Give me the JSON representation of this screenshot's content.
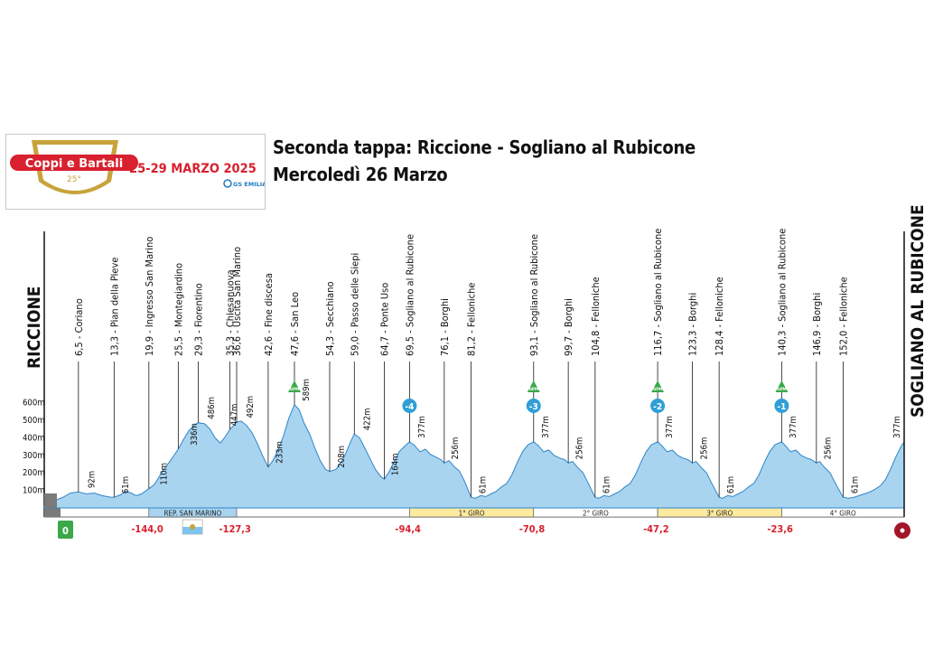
{
  "header": {
    "title_line1": "Seconda tappa: Riccione - Sogliano al Rubicone",
    "title_line2": "Mercoledì 26 Marzo"
  },
  "logo": {
    "brand": "Coppi e Bartali",
    "edition": "25°",
    "dates": "25-29 MARZO 2025",
    "organizer": "GS EMILIA"
  },
  "chart_data": {
    "type": "area",
    "title": "Seconda tappa: Riccione - Sogliano al Rubicone",
    "xlabel": "",
    "ylabel": "",
    "total_km": 163.6,
    "start": "RICCIONE",
    "finish": "SOGLIANO AL RUBICONE",
    "ylim": [
      0,
      650
    ],
    "y_ticks": [
      "100m",
      "200m",
      "300m",
      "400m",
      "500m",
      "600m"
    ],
    "grid": false,
    "waypoints": [
      {
        "km": "6,5",
        "name": "Coriano"
      },
      {
        "km": "13,3",
        "name": "Pian della Pieve"
      },
      {
        "km": "19,9",
        "name": "Ingresso San Marino"
      },
      {
        "km": "25,5",
        "name": "Montegiardino"
      },
      {
        "km": "29,3",
        "name": "Fiorentino"
      },
      {
        "km": "35,3",
        "name": "Chiesanuova"
      },
      {
        "km": "36,6",
        "name": "Uscita San Marino"
      },
      {
        "km": "42,6",
        "name": "Fine discesa"
      },
      {
        "km": "47,6",
        "name": "San Leo"
      },
      {
        "km": "54,3",
        "name": "Secchiano"
      },
      {
        "km": "59,0",
        "name": "Passo delle Siepi"
      },
      {
        "km": "64,7",
        "name": "Ponte Uso"
      },
      {
        "km": "69,5",
        "name": "Sogliano al Rubicone"
      },
      {
        "km": "76,1",
        "name": "Borghi"
      },
      {
        "km": "81,2",
        "name": "Felloniche"
      },
      {
        "km": "93,1",
        "name": "Sogliano al Rubicone"
      },
      {
        "km": "99,7",
        "name": "Borghi"
      },
      {
        "km": "104,8",
        "name": "Felloniche"
      },
      {
        "km": "116,7",
        "name": "Sogliano al Rubicone"
      },
      {
        "km": "123,3",
        "name": "Borghi"
      },
      {
        "km": "128,4",
        "name": "Felloniche"
      },
      {
        "km": "140,3",
        "name": "Sogliano al Rubicone"
      },
      {
        "km": "146,9",
        "name": "Borghi"
      },
      {
        "km": "152,0",
        "name": "Felloniche"
      }
    ],
    "elevation_labels": [
      {
        "km": 9.0,
        "value": 92,
        "label": "92m"
      },
      {
        "km": 15.5,
        "value": 61,
        "label": "61m"
      },
      {
        "km": 22.8,
        "value": 110,
        "label": "110m"
      },
      {
        "km": 28.5,
        "value": 336,
        "label": "336m"
      },
      {
        "km": 31.8,
        "value": 486,
        "label": "486m"
      },
      {
        "km": 36.2,
        "value": 447,
        "label": "447m"
      },
      {
        "km": 39.2,
        "value": 492,
        "label": "492m"
      },
      {
        "km": 44.8,
        "value": 233,
        "label": "233m"
      },
      {
        "km": 49.8,
        "value": 589,
        "label": "589m"
      },
      {
        "km": 56.5,
        "value": 208,
        "label": "208m"
      },
      {
        "km": 61.4,
        "value": 422,
        "label": "422m"
      },
      {
        "km": 66.8,
        "value": 164,
        "label": "164m"
      },
      {
        "km": 71.8,
        "value": 377,
        "label": "377m"
      },
      {
        "km": 78.2,
        "value": 256,
        "label": "256m"
      },
      {
        "km": 83.4,
        "value": 61,
        "label": "61m"
      },
      {
        "km": 95.4,
        "value": 377,
        "label": "377m"
      },
      {
        "km": 101.8,
        "value": 256,
        "label": "256m"
      },
      {
        "km": 107.0,
        "value": 61,
        "label": "61m"
      },
      {
        "km": 118.9,
        "value": 377,
        "label": "377m"
      },
      {
        "km": 125.5,
        "value": 256,
        "label": "256m"
      },
      {
        "km": 130.6,
        "value": 61,
        "label": "61m"
      },
      {
        "km": 142.5,
        "value": 377,
        "label": "377m"
      },
      {
        "km": 149.1,
        "value": 256,
        "label": "256m"
      },
      {
        "km": 154.2,
        "value": 61,
        "label": "61m"
      },
      {
        "km": 162.2,
        "value": 377,
        "label": "377m"
      }
    ],
    "gpm": [
      {
        "km": 47.6,
        "label": "GPM"
      },
      {
        "km": 93.1,
        "label": "GPM"
      },
      {
        "km": 116.7,
        "label": "GPM"
      },
      {
        "km": 140.3,
        "label": "GPM"
      }
    ],
    "laps_to_go": [
      {
        "km": 69.5,
        "label": "-4"
      },
      {
        "km": 93.1,
        "label": "-3"
      },
      {
        "km": 116.7,
        "label": "-2"
      },
      {
        "km": 140.3,
        "label": "-1"
      }
    ],
    "remaining_km": [
      {
        "km": 19.6,
        "label": "-144,0"
      },
      {
        "km": 36.3,
        "label": "-127,3"
      },
      {
        "km": 69.2,
        "label": "-94,4"
      },
      {
        "km": 92.8,
        "label": "-70,8"
      },
      {
        "km": 116.4,
        "label": "-47,2"
      },
      {
        "km": 140.0,
        "label": "-23,6"
      }
    ],
    "segments": [
      {
        "from": 19.9,
        "to": 36.6,
        "label": "REP. SAN MARINO",
        "color": "#a9d4f0"
      },
      {
        "from": 69.5,
        "to": 93.1,
        "label": "1° GIRO",
        "color": "#fbeaa0"
      },
      {
        "from": 93.1,
        "to": 116.7,
        "label": "2° GIRO",
        "color": "#ffffff"
      },
      {
        "from": 116.7,
        "to": 140.3,
        "label": "3° GIRO",
        "color": "#fbeaa0"
      },
      {
        "from": 140.3,
        "to": 163.6,
        "label": "4° GIRO",
        "color": "#ffffff"
      }
    ],
    "start_marker": "0",
    "profile": [
      [
        0,
        10
      ],
      [
        1.5,
        15
      ],
      [
        2.2,
        45
      ],
      [
        3.5,
        60
      ],
      [
        5,
        85
      ],
      [
        6.5,
        92
      ],
      [
        8,
        80
      ],
      [
        9.5,
        85
      ],
      [
        11,
        70
      ],
      [
        12.5,
        62
      ],
      [
        13.3,
        61
      ],
      [
        14.5,
        75
      ],
      [
        15.5,
        95
      ],
      [
        16.5,
        85
      ],
      [
        17.5,
        70
      ],
      [
        18.5,
        80
      ],
      [
        19.9,
        110
      ],
      [
        21,
        135
      ],
      [
        22,
        185
      ],
      [
        23,
        230
      ],
      [
        24,
        270
      ],
      [
        25.5,
        336
      ],
      [
        26.5,
        390
      ],
      [
        27.5,
        440
      ],
      [
        28.5,
        470
      ],
      [
        29.3,
        486
      ],
      [
        30.5,
        480
      ],
      [
        31.5,
        450
      ],
      [
        32.5,
        400
      ],
      [
        33.5,
        370
      ],
      [
        34.5,
        410
      ],
      [
        35.3,
        447
      ],
      [
        36,
        470
      ],
      [
        36.6,
        492
      ],
      [
        37.5,
        495
      ],
      [
        38.5,
        470
      ],
      [
        39.5,
        430
      ],
      [
        40.5,
        370
      ],
      [
        41.5,
        300
      ],
      [
        42.6,
        233
      ],
      [
        43.5,
        270
      ],
      [
        44.5,
        330
      ],
      [
        45.5,
        410
      ],
      [
        46.5,
        510
      ],
      [
        47.6,
        589
      ],
      [
        48.5,
        560
      ],
      [
        49.5,
        480
      ],
      [
        50.5,
        420
      ],
      [
        51.5,
        340
      ],
      [
        52.5,
        270
      ],
      [
        53.5,
        220
      ],
      [
        54.3,
        208
      ],
      [
        55.5,
        220
      ],
      [
        56.5,
        260
      ],
      [
        57.5,
        320
      ],
      [
        58.3,
        380
      ],
      [
        59,
        422
      ],
      [
        60,
        400
      ],
      [
        61,
        340
      ],
      [
        62,
        280
      ],
      [
        63,
        220
      ],
      [
        64,
        180
      ],
      [
        64.7,
        164
      ],
      [
        65.5,
        200
      ],
      [
        66.5,
        260
      ],
      [
        67.5,
        320
      ],
      [
        68.5,
        350
      ],
      [
        69.5,
        377
      ],
      [
        70.5,
        355
      ],
      [
        71.5,
        320
      ],
      [
        72.5,
        335
      ],
      [
        73.5,
        305
      ],
      [
        74.5,
        290
      ],
      [
        75.5,
        275
      ],
      [
        76.1,
        256
      ],
      [
        77,
        270
      ],
      [
        78,
        235
      ],
      [
        79,
        210
      ],
      [
        80,
        150
      ],
      [
        81.2,
        61
      ],
      [
        82,
        55
      ],
      [
        83,
        70
      ],
      [
        84,
        65
      ],
      [
        85,
        80
      ],
      [
        86,
        95
      ],
      [
        87,
        120
      ],
      [
        88,
        140
      ],
      [
        89,
        190
      ],
      [
        90,
        260
      ],
      [
        91,
        320
      ],
      [
        92,
        360
      ],
      [
        93.1,
        377
      ],
      [
        94,
        355
      ],
      [
        95,
        320
      ],
      [
        96,
        330
      ],
      [
        97,
        300
      ],
      [
        98,
        285
      ],
      [
        99,
        275
      ],
      [
        99.7,
        256
      ],
      [
        100.5,
        265
      ],
      [
        101.5,
        230
      ],
      [
        102.5,
        200
      ],
      [
        103.5,
        140
      ],
      [
        104.8,
        61
      ],
      [
        105.5,
        55
      ],
      [
        106.5,
        70
      ],
      [
        107.5,
        65
      ],
      [
        108.5,
        80
      ],
      [
        109.5,
        95
      ],
      [
        110.5,
        120
      ],
      [
        111.5,
        140
      ],
      [
        112.5,
        190
      ],
      [
        113.5,
        260
      ],
      [
        114.5,
        320
      ],
      [
        115.5,
        360
      ],
      [
        116.7,
        377
      ],
      [
        117.5,
        355
      ],
      [
        118.5,
        320
      ],
      [
        119.5,
        330
      ],
      [
        120.5,
        300
      ],
      [
        121.5,
        285
      ],
      [
        122.5,
        275
      ],
      [
        123.3,
        256
      ],
      [
        124,
        265
      ],
      [
        125,
        230
      ],
      [
        126,
        200
      ],
      [
        127,
        140
      ],
      [
        128.4,
        61
      ],
      [
        129,
        55
      ],
      [
        130,
        70
      ],
      [
        131,
        65
      ],
      [
        132,
        80
      ],
      [
        133,
        95
      ],
      [
        134,
        120
      ],
      [
        135,
        140
      ],
      [
        136,
        190
      ],
      [
        137,
        260
      ],
      [
        138,
        320
      ],
      [
        139,
        360
      ],
      [
        140.3,
        377
      ],
      [
        141,
        355
      ],
      [
        142,
        320
      ],
      [
        143,
        330
      ],
      [
        144,
        300
      ],
      [
        145,
        285
      ],
      [
        146,
        275
      ],
      [
        146.9,
        256
      ],
      [
        147.5,
        265
      ],
      [
        148.5,
        230
      ],
      [
        149.5,
        200
      ],
      [
        150.5,
        140
      ],
      [
        152,
        61
      ],
      [
        153,
        55
      ],
      [
        154,
        60
      ],
      [
        155,
        70
      ],
      [
        156,
        80
      ],
      [
        157,
        90
      ],
      [
        158,
        105
      ],
      [
        159,
        125
      ],
      [
        160,
        160
      ],
      [
        161,
        220
      ],
      [
        162,
        290
      ],
      [
        163,
        350
      ],
      [
        163.6,
        377
      ]
    ]
  }
}
